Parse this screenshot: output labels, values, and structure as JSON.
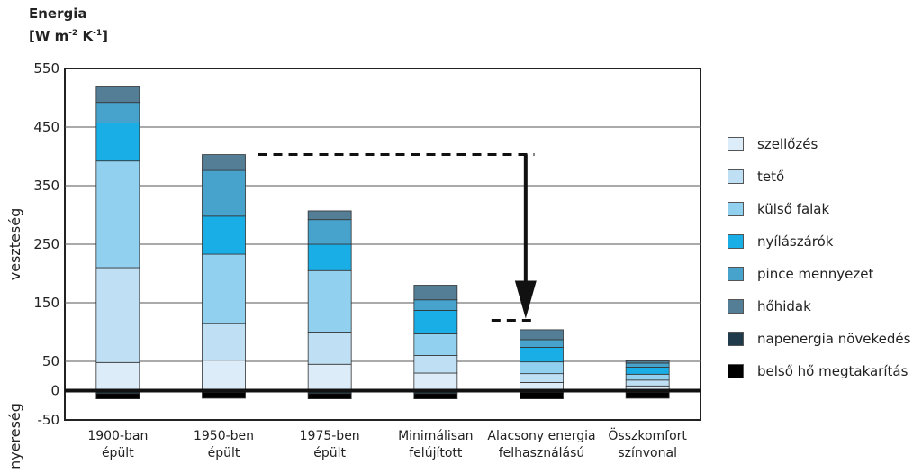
{
  "chart_data": {
    "type": "bar",
    "stacked": true,
    "title": "",
    "ytitle_line1": "Energia",
    "ytitle_line2": "[W m",
    "ytitle_sup1": "-2",
    "ytitle_mid": " K",
    "ytitle_sup2": "-1",
    "ytitle_end": "]",
    "ylabel_positive": "veszteség",
    "ylabel_negative": "nyereség",
    "ylim": [
      -50,
      550
    ],
    "yticks": [
      -50,
      0,
      50,
      150,
      250,
      350,
      450,
      550
    ],
    "grid": true,
    "legend_position": "right",
    "categories": [
      [
        "1900-ban",
        "épült"
      ],
      [
        "1950-ben",
        "épült"
      ],
      [
        "1975-ben",
        "épült"
      ],
      [
        "Minimálisan",
        "felújított"
      ],
      [
        "Alacsony energia",
        "felhasználású"
      ],
      [
        "Összkomfort",
        "színvonal"
      ]
    ],
    "series": [
      {
        "name": "szellőzés",
        "color": "#dcecf8",
        "values": [
          48,
          52,
          45,
          30,
          14,
          8
        ]
      },
      {
        "name": "tető",
        "color": "#bfdff4",
        "values": [
          162,
          63,
          55,
          30,
          15,
          10
        ]
      },
      {
        "name": "külső falak",
        "color": "#92d0f0",
        "values": [
          182,
          118,
          105,
          37,
          20,
          10
        ]
      },
      {
        "name": "nyílászárók",
        "color": "#1aaee6",
        "values": [
          65,
          65,
          45,
          40,
          25,
          12
        ]
      },
      {
        "name": "pince mennyezet",
        "color": "#48a3cc",
        "values": [
          35,
          78,
          42,
          18,
          13,
          7
        ]
      },
      {
        "name": "hőhidak",
        "color": "#537e96",
        "values": [
          28,
          27,
          15,
          25,
          17,
          4
        ]
      },
      {
        "name": "napenergia növekedés",
        "color": "#203b4c",
        "values": [
          -5,
          -3,
          -5,
          -5,
          -3,
          -3
        ]
      },
      {
        "name": "belső hő megtakarítás",
        "color": "#000000",
        "values": [
          -9,
          -10,
          -9,
          -9,
          -11,
          -10
        ]
      }
    ]
  }
}
